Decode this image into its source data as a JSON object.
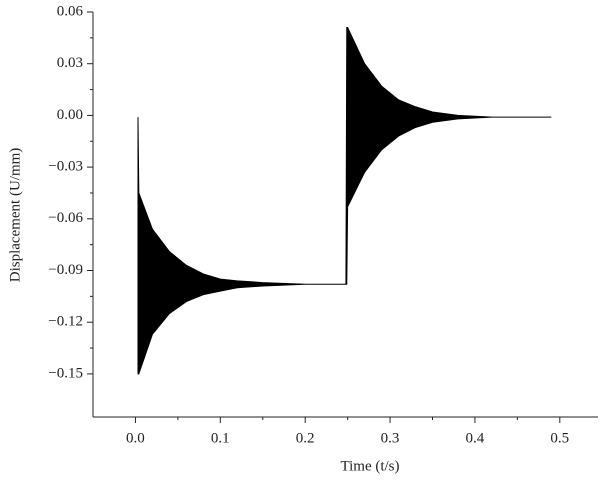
{
  "chart_data": {
    "type": "range_area",
    "x_label": "Time (t/s)",
    "y_label": "Displacement (U/mm)",
    "x": [
      0.003,
      0.004,
      0.02,
      0.04,
      0.06,
      0.08,
      0.1,
      0.12,
      0.15,
      0.2,
      0.248,
      0.249,
      0.25,
      0.27,
      0.29,
      0.31,
      0.33,
      0.35,
      0.38,
      0.42,
      0.49
    ],
    "series": [
      {
        "color": "#000000",
        "high": [
          -0.001,
          -0.045,
          -0.066,
          -0.079,
          -0.087,
          -0.092,
          -0.095,
          -0.096,
          -0.097,
          -0.098,
          -0.098,
          0.051,
          0.051,
          0.03,
          0.017,
          0.009,
          0.005,
          0.002,
          0.0,
          -0.001,
          -0.001
        ],
        "low": [
          -0.15,
          -0.15,
          -0.127,
          -0.115,
          -0.108,
          -0.104,
          -0.102,
          -0.1,
          -0.099,
          -0.098,
          -0.098,
          -0.098,
          -0.053,
          -0.033,
          -0.02,
          -0.012,
          -0.007,
          -0.004,
          -0.002,
          -0.001,
          -0.001
        ]
      }
    ],
    "xlim": [
      -0.05,
      0.545
    ],
    "ylim": [
      -0.175,
      0.06
    ],
    "xticks": [
      {
        "value": 0,
        "label": "0.0"
      },
      0.1,
      0.2,
      0.3,
      0.4,
      0.5
    ],
    "yticks": [
      {
        "value": -0.15,
        "label": "−0.15"
      },
      {
        "value": -0.12,
        "label": "−0.12"
      },
      {
        "value": -0.09,
        "label": "−0.09"
      },
      {
        "value": -0.06,
        "label": "−0.06"
      },
      {
        "value": -0.03,
        "label": "−0.03"
      },
      {
        "value": 0,
        "label": "0.00"
      },
      0.03,
      0.06
    ],
    "grid": false
  }
}
